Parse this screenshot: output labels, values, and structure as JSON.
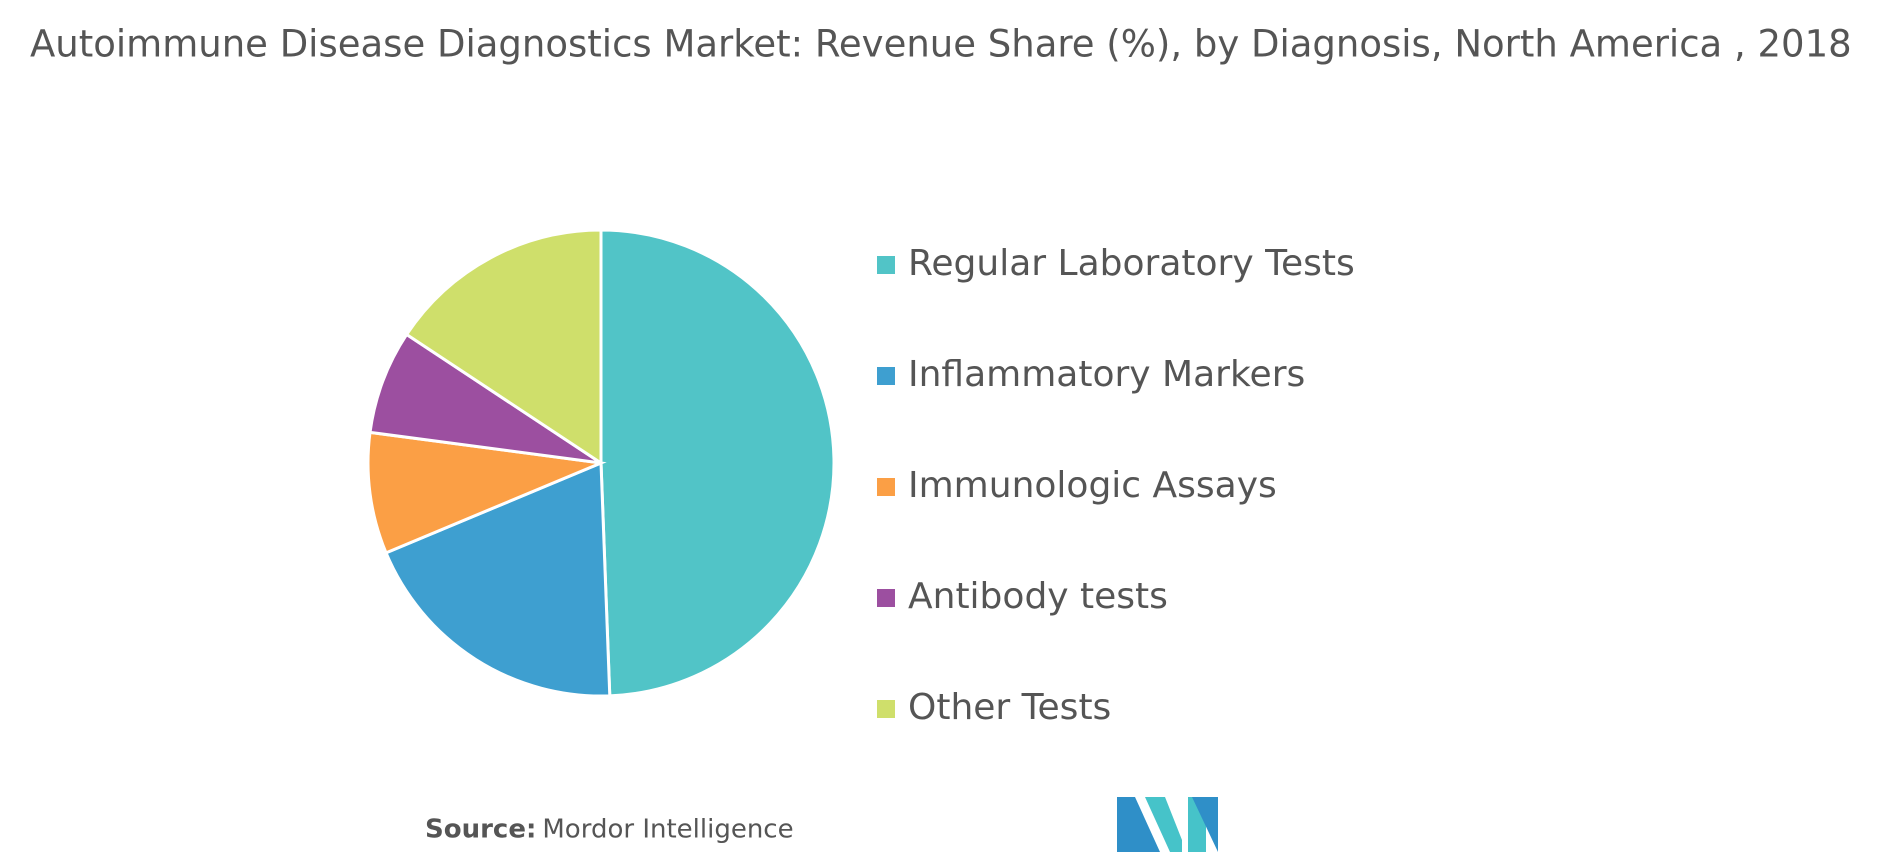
{
  "chart_data": {
    "type": "pie",
    "title": "Autoimmune Disease Diagnostics Market: Revenue Share (%), by Diagnosis, North America , 2018",
    "categories": [
      "Regular Laboratory Tests",
      "Inflammatory Markers",
      "Immunologic Assays",
      "Antibody tests",
      "Other Tests"
    ],
    "values": [
      49.4,
      19.3,
      8.4,
      7.2,
      15.7
    ],
    "colors": [
      "#51c4c7",
      "#3e9fd0",
      "#fb9f45",
      "#9c4fa0",
      "#cfdf6b"
    ],
    "legend": "right",
    "source_label": "Source:",
    "source": "Mordor Intelligence"
  }
}
